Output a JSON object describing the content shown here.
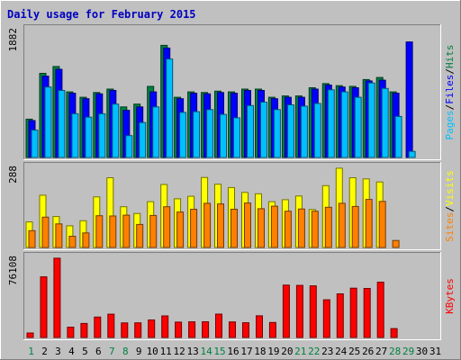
{
  "chart_data": [
    {
      "title": "Daily usage for February 2015",
      "type": "bar",
      "categories": [
        "1",
        "2",
        "3",
        "4",
        "5",
        "6",
        "7",
        "8",
        "9",
        "10",
        "11",
        "12",
        "13",
        "14",
        "15",
        "16",
        "17",
        "18",
        "19",
        "20",
        "21",
        "22",
        "23",
        "24",
        "25",
        "26",
        "27",
        "28",
        "29",
        "30",
        "31"
      ],
      "weekend_days": [
        "1",
        "7",
        "8",
        "14",
        "15",
        "21",
        "22",
        "28",
        "29"
      ],
      "panels": [
        {
          "name": "hits-files-pages",
          "ymax_label": "1882",
          "ymax": 1882,
          "series": [
            {
              "name": "Hits",
              "color": "#008040",
              "values": [
                560,
                1230,
                1330,
                960,
                880,
                950,
                1000,
                740,
                780,
                1040,
                1640,
                880,
                960,
                950,
                970,
                960,
                1000,
                1000,
                880,
                900,
                900,
                1020,
                1080,
                1050,
                1040,
                1140,
                1170,
                960,
                0,
                0,
                0
              ]
            },
            {
              "name": "Files",
              "color": "#0000ff",
              "values": [
                540,
                1190,
                1290,
                940,
                860,
                930,
                980,
                690,
                740,
                960,
                1600,
                860,
                940,
                930,
                950,
                940,
                980,
                980,
                860,
                880,
                880,
                1000,
                1060,
                1030,
                1020,
                1120,
                1130,
                940,
                1690,
                0,
                0
              ]
            },
            {
              "name": "Pages",
              "color": "#00c0ff",
              "values": [
                400,
                1030,
                980,
                640,
                590,
                640,
                780,
                320,
                510,
                740,
                1440,
                660,
                670,
                700,
                630,
                580,
                760,
                810,
                700,
                770,
                750,
                790,
                990,
                960,
                880,
                1090,
                1010,
                600,
                90,
                0,
                0
              ]
            }
          ]
        },
        {
          "name": "visits-sites",
          "ymax_label": "288",
          "ymax": 288,
          "series": [
            {
              "name": "Visits",
              "color": "#ffff00",
              "values": [
                91,
                186,
                110,
                77,
                95,
                180,
                248,
                145,
                121,
                163,
                224,
                173,
                182,
                249,
                225,
                213,
                196,
                191,
                163,
                170,
                183,
                135,
                220,
                282,
                248,
                244,
                233,
                0,
                0,
                0,
                0
              ]
            },
            {
              "name": "Sites",
              "color": "#ff8000",
              "values": [
                60,
                108,
                84,
                40,
                52,
                113,
                112,
                115,
                82,
                114,
                145,
                126,
                136,
                157,
                155,
                136,
                158,
                138,
                147,
                129,
                137,
                129,
                143,
                157,
                146,
                171,
                164,
                25,
                0,
                0,
                0
              ]
            }
          ]
        },
        {
          "name": "kbytes",
          "ymax_label": "76108",
          "ymax": 76108,
          "series": [
            {
              "name": "KBytes",
              "color": "#ff0000",
              "values": [
                4200,
                57000,
                74500,
                9700,
                13200,
                19200,
                21900,
                13700,
                13800,
                16500,
                20300,
                14500,
                14700,
                14800,
                22000,
                14600,
                13900,
                20400,
                14100,
                49200,
                49000,
                48500,
                35400,
                41000,
                46300,
                46100,
                52000,
                8400,
                0,
                0,
                0
              ]
            }
          ]
        }
      ]
    }
  ]
}
